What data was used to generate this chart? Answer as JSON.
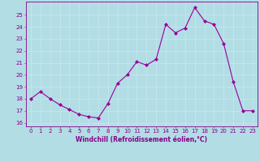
{
  "x": [
    0,
    1,
    2,
    3,
    4,
    5,
    6,
    7,
    8,
    9,
    10,
    11,
    12,
    13,
    14,
    15,
    16,
    17,
    18,
    19,
    20,
    21,
    22,
    23
  ],
  "y": [
    18.0,
    18.6,
    18.0,
    17.5,
    17.1,
    16.7,
    16.5,
    16.4,
    17.6,
    19.3,
    20.0,
    21.1,
    20.8,
    21.3,
    24.2,
    23.5,
    23.9,
    25.6,
    24.5,
    24.2,
    22.6,
    19.4,
    17.0,
    17.0
  ],
  "line_color": "#990099",
  "marker": "D",
  "marker_size": 2.0,
  "bg_color": "#b2dde5",
  "grid_color": "#c8e8ee",
  "xlabel": "Windchill (Refroidissement éolien,°C)",
  "ylabel_ticks": [
    16,
    17,
    18,
    19,
    20,
    21,
    22,
    23,
    24,
    25
  ],
  "xlim": [
    -0.5,
    23.5
  ],
  "ylim": [
    15.7,
    26.1
  ],
  "text_color": "#880088",
  "tick_fontsize": 5.0,
  "xlabel_fontsize": 5.5
}
